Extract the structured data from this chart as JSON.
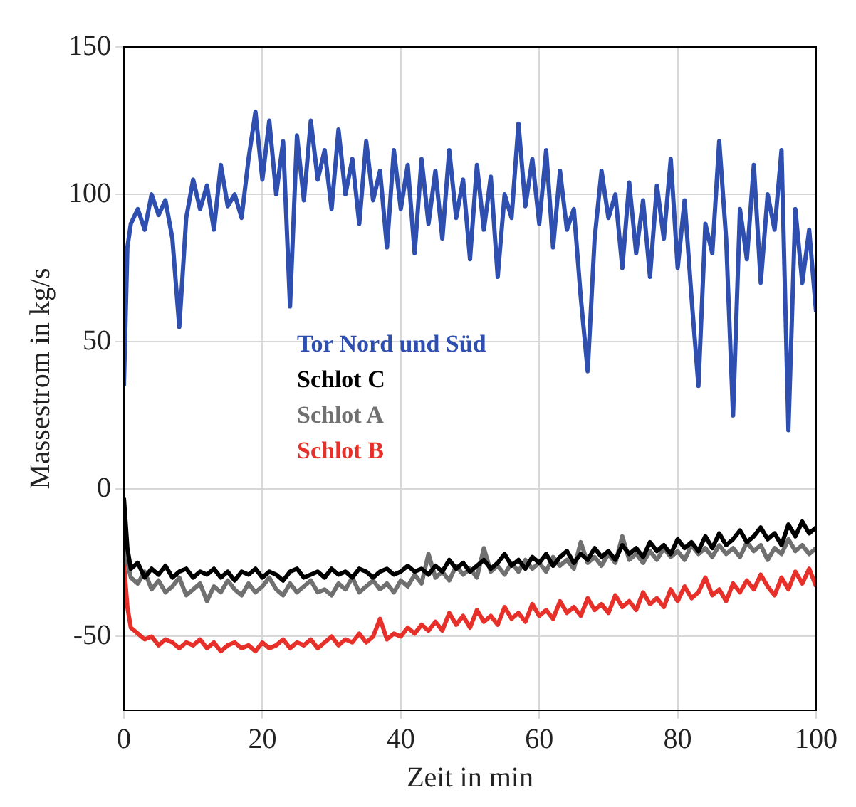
{
  "chart_data": {
    "type": "line",
    "xlabel": "Zeit in min",
    "ylabel": "Massestrom in kg/s",
    "x": [
      0,
      0.5,
      1,
      2,
      3,
      4,
      5,
      6,
      7,
      8,
      9,
      10,
      11,
      12,
      13,
      14,
      15,
      16,
      17,
      18,
      19,
      20,
      21,
      22,
      23,
      24,
      25,
      26,
      27,
      28,
      29,
      30,
      31,
      32,
      33,
      34,
      35,
      36,
      37,
      38,
      39,
      40,
      41,
      42,
      43,
      44,
      45,
      46,
      47,
      48,
      49,
      50,
      51,
      52,
      53,
      54,
      55,
      56,
      57,
      58,
      59,
      60,
      61,
      62,
      63,
      64,
      65,
      66,
      67,
      68,
      69,
      70,
      71,
      72,
      73,
      74,
      75,
      76,
      77,
      78,
      79,
      80,
      81,
      82,
      83,
      84,
      85,
      86,
      87,
      88,
      89,
      90,
      91,
      92,
      93,
      94,
      95,
      96,
      97,
      98,
      99,
      100
    ],
    "series": [
      {
        "name": "Tor Nord und Süd",
        "color": "#2e4fb0",
        "values": [
          35,
          82,
          90,
          95,
          88,
          100,
          93,
          98,
          85,
          55,
          92,
          105,
          95,
          103,
          88,
          110,
          96,
          100,
          92,
          112,
          128,
          105,
          125,
          100,
          118,
          62,
          120,
          98,
          125,
          105,
          115,
          95,
          122,
          100,
          112,
          90,
          118,
          98,
          108,
          82,
          115,
          95,
          110,
          80,
          112,
          90,
          108,
          85,
          115,
          92,
          105,
          78,
          110,
          88,
          106,
          72,
          100,
          92,
          124,
          96,
          112,
          90,
          115,
          82,
          108,
          88,
          95,
          65,
          40,
          85,
          108,
          92,
          100,
          75,
          104,
          80,
          98,
          72,
          103,
          85,
          112,
          75,
          98,
          65,
          35,
          90,
          80,
          118,
          85,
          25,
          95,
          78,
          110,
          70,
          100,
          88,
          115,
          20,
          95,
          70,
          88,
          60
        ]
      },
      {
        "name": "Schlot C",
        "color": "#000000",
        "values": [
          -3,
          -20,
          -27,
          -25,
          -30,
          -27,
          -29,
          -26,
          -30,
          -28,
          -27,
          -30,
          -28,
          -29,
          -27,
          -30,
          -28,
          -31,
          -28,
          -29,
          -27,
          -30,
          -28,
          -29,
          -31,
          -28,
          -27,
          -30,
          -29,
          -28,
          -30,
          -27,
          -29,
          -28,
          -30,
          -27,
          -28,
          -30,
          -28,
          -27,
          -29,
          -28,
          -26,
          -28,
          -27,
          -29,
          -26,
          -28,
          -24,
          -27,
          -25,
          -28,
          -26,
          -24,
          -27,
          -25,
          -22,
          -26,
          -24,
          -27,
          -23,
          -25,
          -22,
          -26,
          -23,
          -21,
          -25,
          -22,
          -24,
          -20,
          -23,
          -21,
          -24,
          -19,
          -22,
          -20,
          -23,
          -18,
          -21,
          -19,
          -22,
          -17,
          -20,
          -18,
          -21,
          -16,
          -20,
          -15,
          -19,
          -17,
          -14,
          -18,
          -16,
          -13,
          -17,
          -15,
          -19,
          -12,
          -16,
          -11,
          -15,
          -13
        ]
      },
      {
        "name": "Schlot A",
        "color": "#707070",
        "values": [
          -10,
          -25,
          -30,
          -32,
          -28,
          -34,
          -31,
          -35,
          -33,
          -30,
          -36,
          -34,
          -32,
          -38,
          -33,
          -35,
          -31,
          -34,
          -36,
          -32,
          -35,
          -33,
          -30,
          -34,
          -36,
          -32,
          -35,
          -33,
          -31,
          -35,
          -34,
          -36,
          -32,
          -34,
          -30,
          -35,
          -33,
          -31,
          -34,
          -32,
          -35,
          -31,
          -33,
          -29,
          -32,
          -22,
          -30,
          -28,
          -31,
          -26,
          -29,
          -27,
          -30,
          -20,
          -28,
          -26,
          -29,
          -25,
          -28,
          -24,
          -27,
          -25,
          -28,
          -23,
          -26,
          -24,
          -27,
          -18,
          -25,
          -23,
          -26,
          -22,
          -25,
          -16,
          -24,
          -22,
          -25,
          -21,
          -24,
          -20,
          -23,
          -21,
          -24,
          -19,
          -22,
          -20,
          -23,
          -19,
          -22,
          -20,
          -23,
          -18,
          -21,
          -19,
          -24,
          -20,
          -22,
          -17,
          -21,
          -19,
          -22,
          -20
        ]
      },
      {
        "name": "Schlot B",
        "color": "#e8302a",
        "values": [
          -25,
          -40,
          -47,
          -49,
          -51,
          -50,
          -53,
          -51,
          -52,
          -54,
          -52,
          -53,
          -51,
          -54,
          -52,
          -55,
          -53,
          -52,
          -54,
          -53,
          -55,
          -52,
          -54,
          -53,
          -51,
          -54,
          -52,
          -53,
          -51,
          -54,
          -52,
          -50,
          -53,
          -51,
          -52,
          -49,
          -52,
          -50,
          -44,
          -51,
          -49,
          -50,
          -47,
          -49,
          -46,
          -48,
          -45,
          -48,
          -42,
          -46,
          -43,
          -47,
          -41,
          -45,
          -43,
          -46,
          -40,
          -44,
          -42,
          -45,
          -39,
          -43,
          -41,
          -44,
          -38,
          -42,
          -40,
          -43,
          -37,
          -41,
          -39,
          -42,
          -36,
          -40,
          -38,
          -41,
          -35,
          -39,
          -37,
          -40,
          -34,
          -38,
          -33,
          -37,
          -35,
          -30,
          -36,
          -34,
          -38,
          -32,
          -35,
          -31,
          -34,
          -29,
          -33,
          -36,
          -30,
          -34,
          -28,
          -32,
          -27,
          -33
        ]
      }
    ],
    "xlim": [
      0,
      100
    ],
    "xticks": [
      0,
      20,
      40,
      60,
      80,
      100
    ],
    "ylim": [
      -75,
      150
    ],
    "yticks": [
      -50,
      0,
      50,
      100,
      150
    ],
    "grid": true,
    "legend": "left",
    "marker": "none",
    "line_style": "solid"
  }
}
